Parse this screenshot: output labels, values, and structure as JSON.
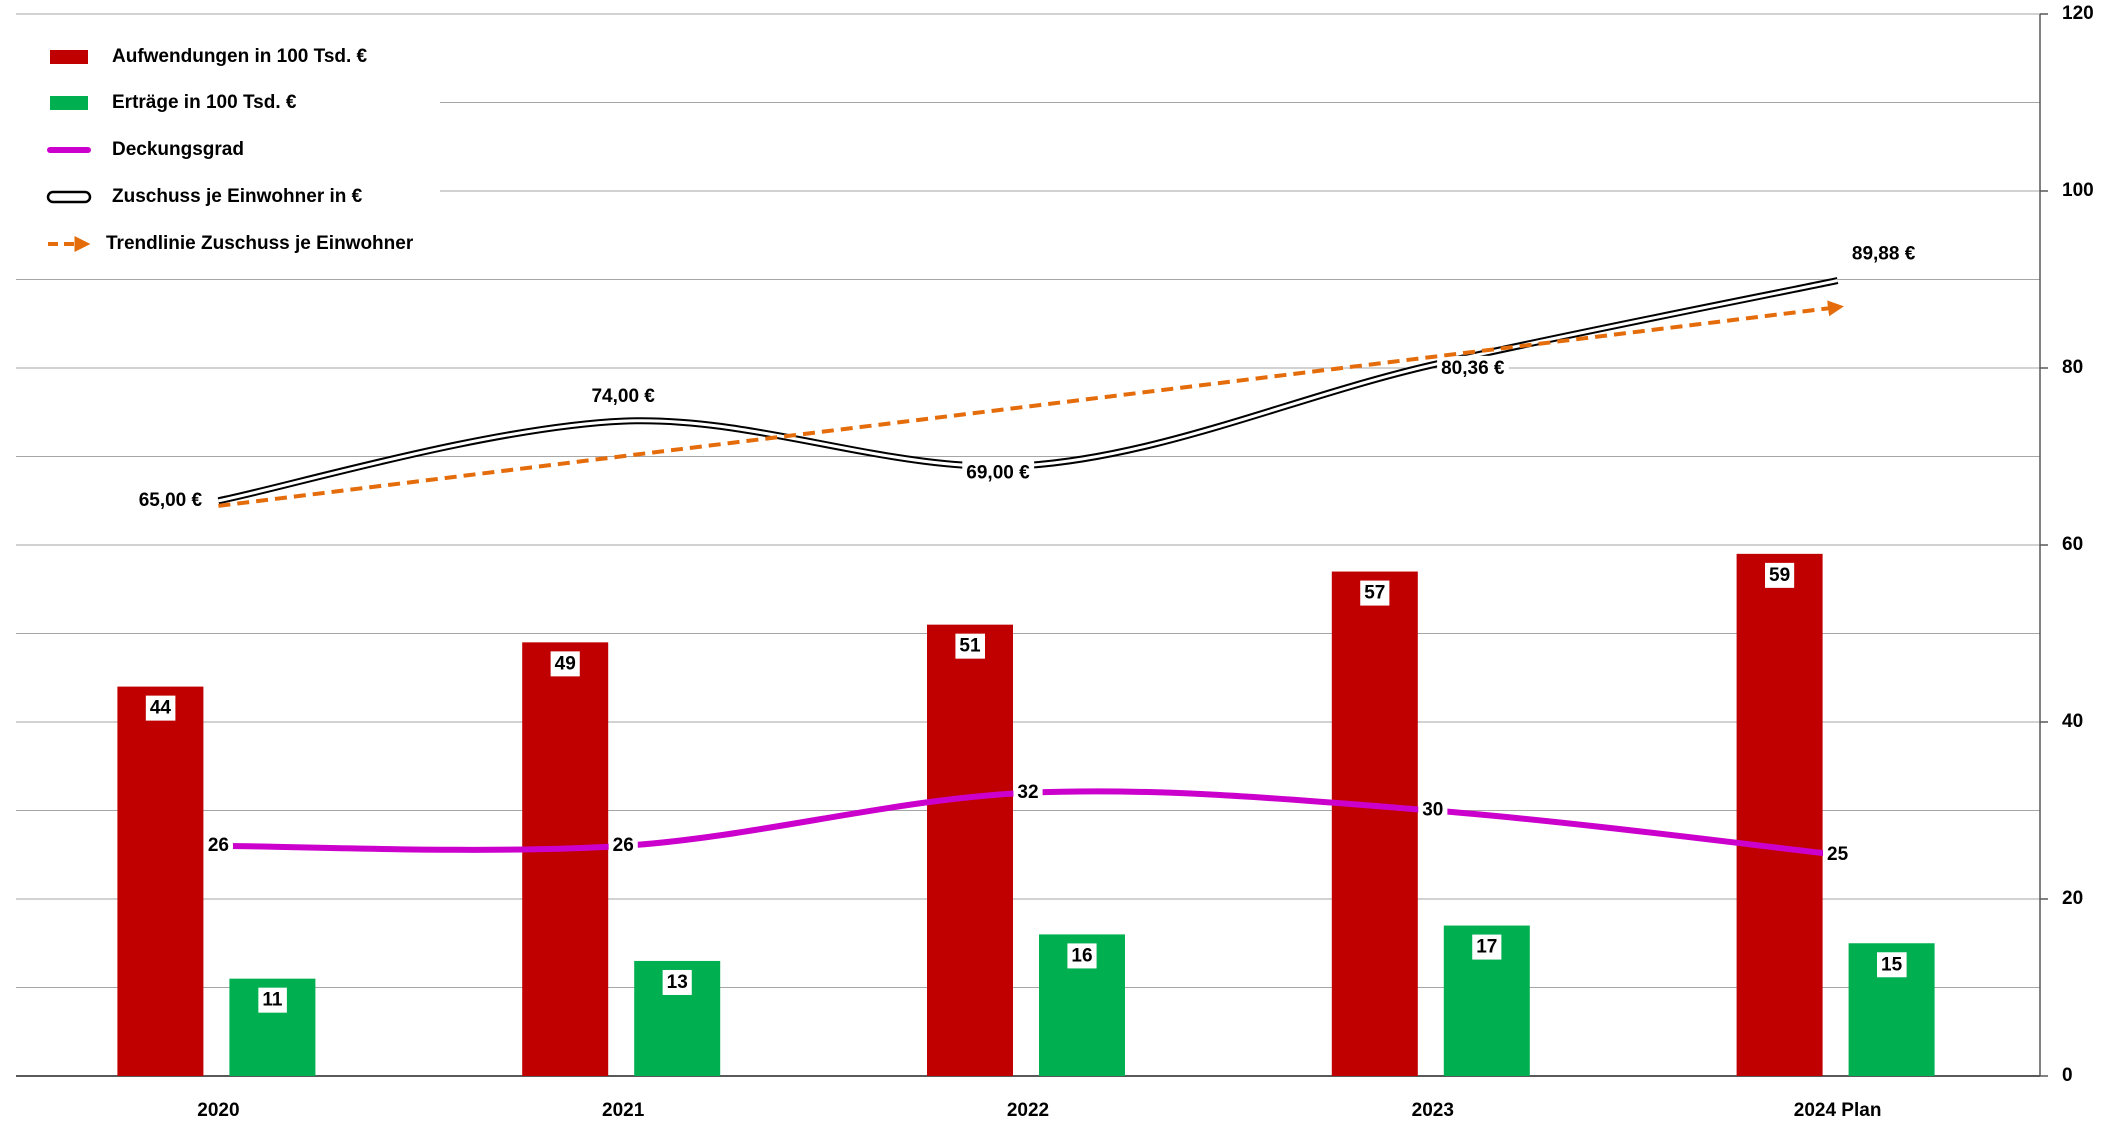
{
  "chart_data": {
    "type": "bar",
    "categories": [
      "2020",
      "2021",
      "2022",
      "2023",
      "2024  Plan"
    ],
    "series": [
      {
        "name": "Aufwendungen  in 100 Tsd. €",
        "type": "bar",
        "color": "#c00000",
        "values": [
          44,
          49,
          51,
          57,
          59
        ]
      },
      {
        "name": "Erträge  in 100 Tsd. €",
        "type": "bar",
        "color": "#00b050",
        "values": [
          11,
          13,
          16,
          17,
          15
        ]
      },
      {
        "name": "Deckungsgrad",
        "type": "line",
        "color": "#cc00cc",
        "smooth": true,
        "values": [
          26,
          26,
          32,
          30,
          25
        ]
      },
      {
        "name": "Zuschuss je Einwohner  in €",
        "type": "line",
        "color": "#000000",
        "style": "double",
        "smooth": true,
        "values": [
          65,
          74,
          69,
          80.36,
          89.88
        ],
        "value_labels": [
          "65,00 €",
          "74,00 €",
          "69,00 €",
          "80,36 €",
          "89,88 €"
        ]
      },
      {
        "name": "Trendlinie  Zuschuss je Einwohner",
        "type": "line",
        "color": "#e46c0a",
        "style": "dashed",
        "arrow": true,
        "values": [
          64.42,
          70.04,
          75.65,
          81.26,
          86.87
        ]
      }
    ],
    "ylim": [
      0,
      120
    ],
    "yticks": [
      0,
      20,
      40,
      60,
      80,
      100,
      120
    ],
    "minor_yticks": [
      10,
      30,
      50,
      70,
      90,
      110
    ],
    "grid": true,
    "legend": "top-left"
  }
}
